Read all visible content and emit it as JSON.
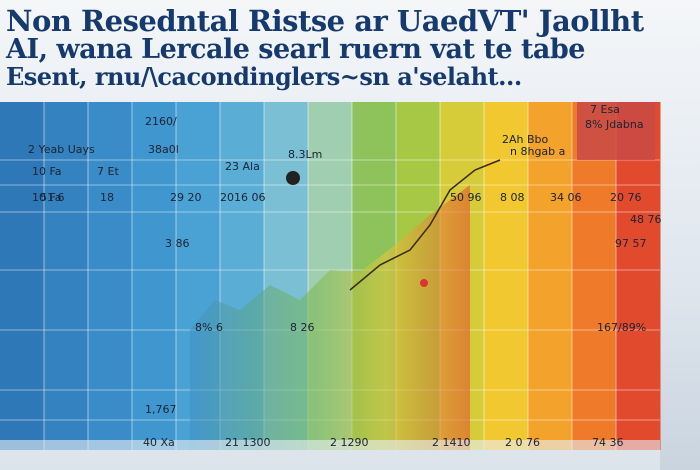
{
  "header": {
    "lines": [
      "Non Resedntal Ristse ar UaedVT' Jaollht",
      "AI, wana Lercale searl ruern vat te tabe",
      "Esent, rnu/\\cacondinglers~sn a'selaht..."
    ]
  },
  "labels": [
    "2160/",
    "38a0l",
    "2 Yeab Uays",
    "8.3Lm",
    "23 Ala",
    "2Ah Bbo",
    "n 8hgab a",
    "7 Esa",
    "8% Jdabna",
    "10 Fa",
    "7 Et",
    "10 Fa",
    "51 6",
    "18",
    "29 20",
    "2016 06",
    "50 96",
    "8 08",
    "34 06",
    "20 76",
    "48 76",
    "3 86",
    "8% 6",
    "8 26",
    "97 57",
    "167/89%",
    "1,767",
    "40 Xa",
    "21 1300",
    "2 1290",
    "2 1410",
    "2 0 76",
    "74 36"
  ]
}
